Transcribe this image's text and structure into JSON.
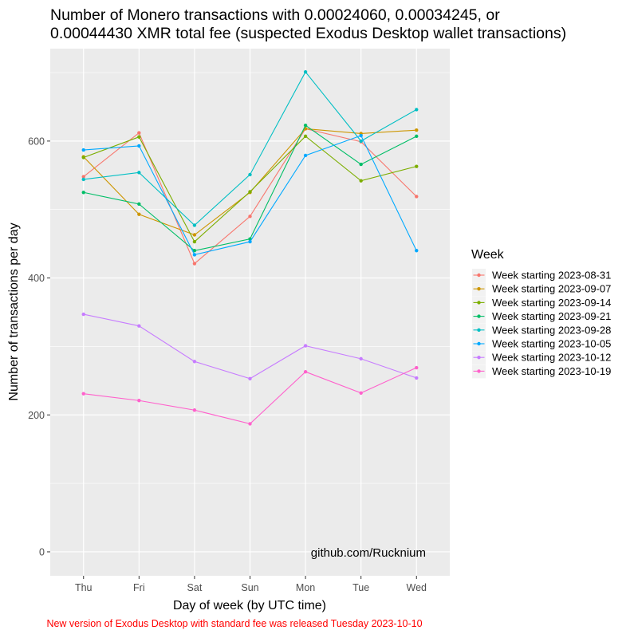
{
  "chart_data": {
    "type": "line",
    "title_lines": [
      "Number of Monero transactions with 0.00024060, 0.00034245, or",
      "0.00044430 XMR total fee (suspected Exodus Desktop wallet transactions)"
    ],
    "xlabel": "Day of week (by UTC time)",
    "ylabel": "Number of transactions per day",
    "categories": [
      "Thu",
      "Fri",
      "Sat",
      "Sun",
      "Mon",
      "Tue",
      "Wed"
    ],
    "yticks": [
      0,
      200,
      400,
      600
    ],
    "ylim": [
      -35,
      735
    ],
    "grid": true,
    "legend": {
      "title": "Week",
      "position": "right"
    },
    "annotation": "github.com/Rucknium",
    "caption": "New version of Exodus Desktop with standard fee was released Tuesday 2023-10-10",
    "series": [
      {
        "name": "Week starting 2023-08-31",
        "color": "#F8766D",
        "values": [
          548,
          612,
          421,
          490,
          618,
          599,
          519
        ]
      },
      {
        "name": "Week starting 2023-09-07",
        "color": "#CD9600",
        "values": [
          577,
          493,
          463,
          525,
          618,
          611,
          616
        ]
      },
      {
        "name": "Week starting 2023-09-14",
        "color": "#7CAE00",
        "values": [
          576,
          606,
          453,
          526,
          607,
          542,
          563
        ]
      },
      {
        "name": "Week starting 2023-09-21",
        "color": "#00BE67",
        "values": [
          525,
          508,
          440,
          457,
          623,
          566,
          607
        ]
      },
      {
        "name": "Week starting 2023-09-28",
        "color": "#00BFC4",
        "values": [
          544,
          554,
          477,
          551,
          701,
          600,
          646
        ]
      },
      {
        "name": "Week starting 2023-10-05",
        "color": "#00A9FF",
        "values": [
          587,
          593,
          434,
          453,
          579,
          608,
          440
        ]
      },
      {
        "name": "Week starting 2023-10-12",
        "color": "#C77CFF",
        "values": [
          347,
          330,
          278,
          253,
          301,
          282,
          254
        ]
      },
      {
        "name": "Week starting 2023-10-19",
        "color": "#FF61CC",
        "values": [
          231,
          221,
          207,
          187,
          263,
          232,
          269
        ]
      }
    ]
  }
}
